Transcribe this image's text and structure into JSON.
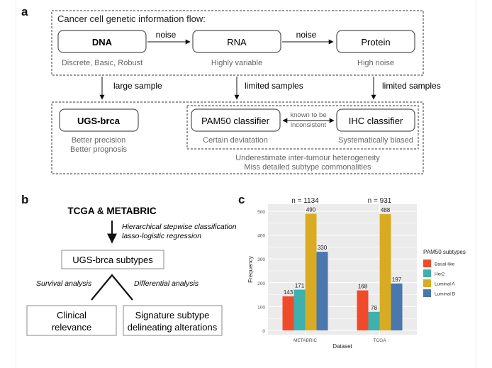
{
  "panel_a": {
    "letter": "a",
    "flow_title": "Cancer cell genetic information flow:",
    "dna": {
      "label": "DNA",
      "desc": "Discrete, Basic, Robust"
    },
    "rna": {
      "label": "RNA",
      "desc": "Highly variable"
    },
    "protein": {
      "label": "Protein",
      "desc": "High noise"
    },
    "noise_1": "noise",
    "noise_2": "noise",
    "arrow_large_sample": "large sample",
    "arrow_limited_1": "limited samples",
    "arrow_limited_2": "limited samples",
    "ugs": {
      "label": "UGS-brca",
      "desc_1": "Better precision",
      "desc_2": "Better prognosis"
    },
    "pam50": {
      "label": "PAM50 classifier",
      "desc": "Certain deviatation"
    },
    "ihc": {
      "label": "IHC classifier",
      "desc": "Systematically biased"
    },
    "known_1": "known to be",
    "known_2": "inconsistent",
    "under_1": "Underestimate inter-tumour heterogeneity",
    "under_2": "Miss detailed subtype commonalities"
  },
  "panel_b": {
    "letter": "b",
    "source": "TCGA & METABRIC",
    "method_1": "Hierarchical stepwise classification",
    "method_2": "lasso-logistic regression",
    "subtypes_box": "UGS-brca subtypes",
    "survival": "Survival analysis",
    "differential": "Differential analysis",
    "clinical_1": "Clinical",
    "clinical_2": "relevance",
    "signature_1": "Signature subtype",
    "signature_2": "delineating alterations"
  },
  "panel_c": {
    "letter": "c"
  },
  "chart_data": {
    "type": "bar",
    "categories": [
      "METABRIC",
      "TCGA"
    ],
    "group_totals": [
      "n = 1134",
      "n = 931"
    ],
    "series": [
      {
        "name": "Basal-like",
        "color": "#F14A2B",
        "values": [
          143,
          168
        ]
      },
      {
        "name": "Her2",
        "color": "#3FB0AE",
        "values": [
          171,
          78
        ]
      },
      {
        "name": "Luminal A",
        "color": "#D8AB22",
        "values": [
          490,
          488
        ]
      },
      {
        "name": "Luminal B",
        "color": "#4A77AE",
        "values": [
          330,
          197
        ]
      }
    ],
    "xlabel": "Dataset",
    "ylabel": "Frequency",
    "ylim": [
      0,
      510
    ],
    "yticks": [
      0,
      100,
      200,
      300,
      400,
      500
    ],
    "legend_title": "PAM50 subtypes",
    "legend_position": "right",
    "grid": true
  }
}
